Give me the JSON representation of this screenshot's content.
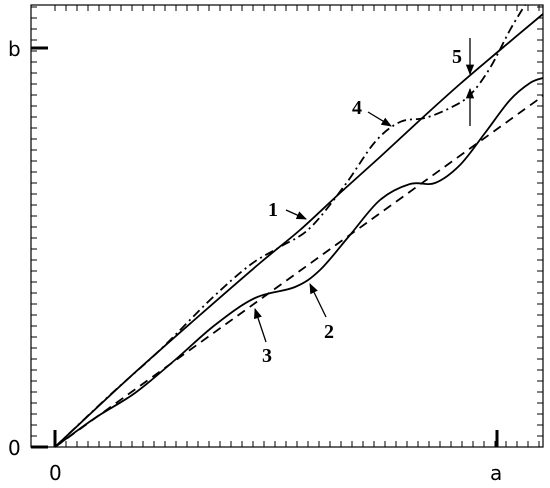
{
  "axes": {
    "x_origin": "0",
    "x_end": "a",
    "y_origin": "0",
    "y_end": "b"
  },
  "curve_labels": [
    "1",
    "2",
    "3",
    "4",
    "5"
  ]
}
